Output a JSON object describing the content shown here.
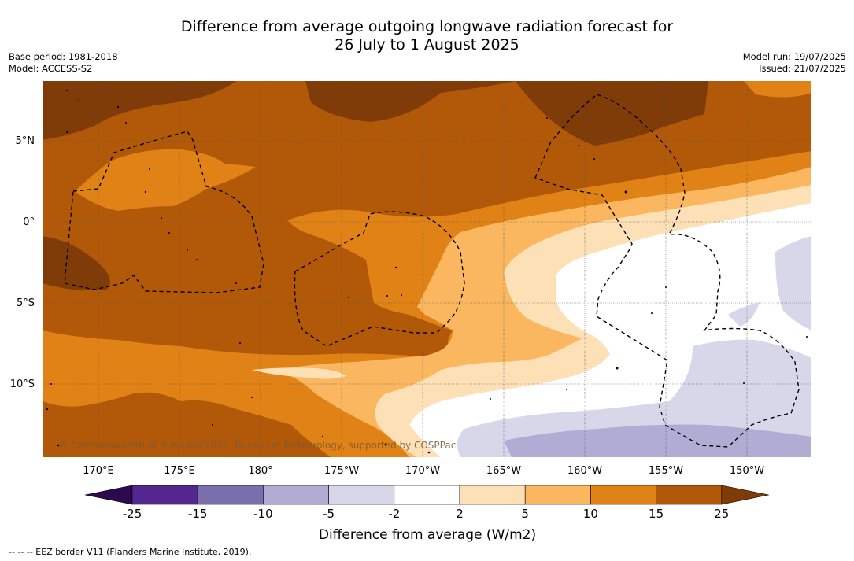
{
  "title": {
    "line1": "Difference from average outgoing longwave radiation forecast for",
    "line2": "26 July to 1 August 2025"
  },
  "meta_left": {
    "base_period": "Base period: 1981-2018",
    "model": "Model: ACCESS-S2"
  },
  "meta_right": {
    "model_run": "Model run: 19/07/2025",
    "issued": "Issued: 21/07/2025"
  },
  "map": {
    "lat_labels": [
      "5°N",
      "0°",
      "5°S",
      "10°S"
    ],
    "lon_labels": [
      "170°E",
      "175°E",
      "180°",
      "175°W",
      "170°W",
      "165°W",
      "160°W",
      "155°W",
      "150°W"
    ],
    "credit": "© Commonwealth of Australia 2025, Bureau of Meteorology, supported by COSPPac"
  },
  "colorbar": {
    "title": "Difference from average (W/m2)",
    "ticks": [
      "-25",
      "-15",
      "-10",
      "-5",
      "-2",
      "2",
      "5",
      "10",
      "15",
      "25"
    ],
    "colors": [
      "#2d0a4e",
      "#54278f",
      "#7b6eac",
      "#b1acd4",
      "#d7d7ea",
      "#ffffff",
      "#fde0b6",
      "#fbb75f",
      "#e08215",
      "#b25809",
      "#7f3b08"
    ]
  },
  "footer": {
    "eez_note": "--  --  -- EEZ border V11 (Flanders Marine Institute, 2019)."
  }
}
